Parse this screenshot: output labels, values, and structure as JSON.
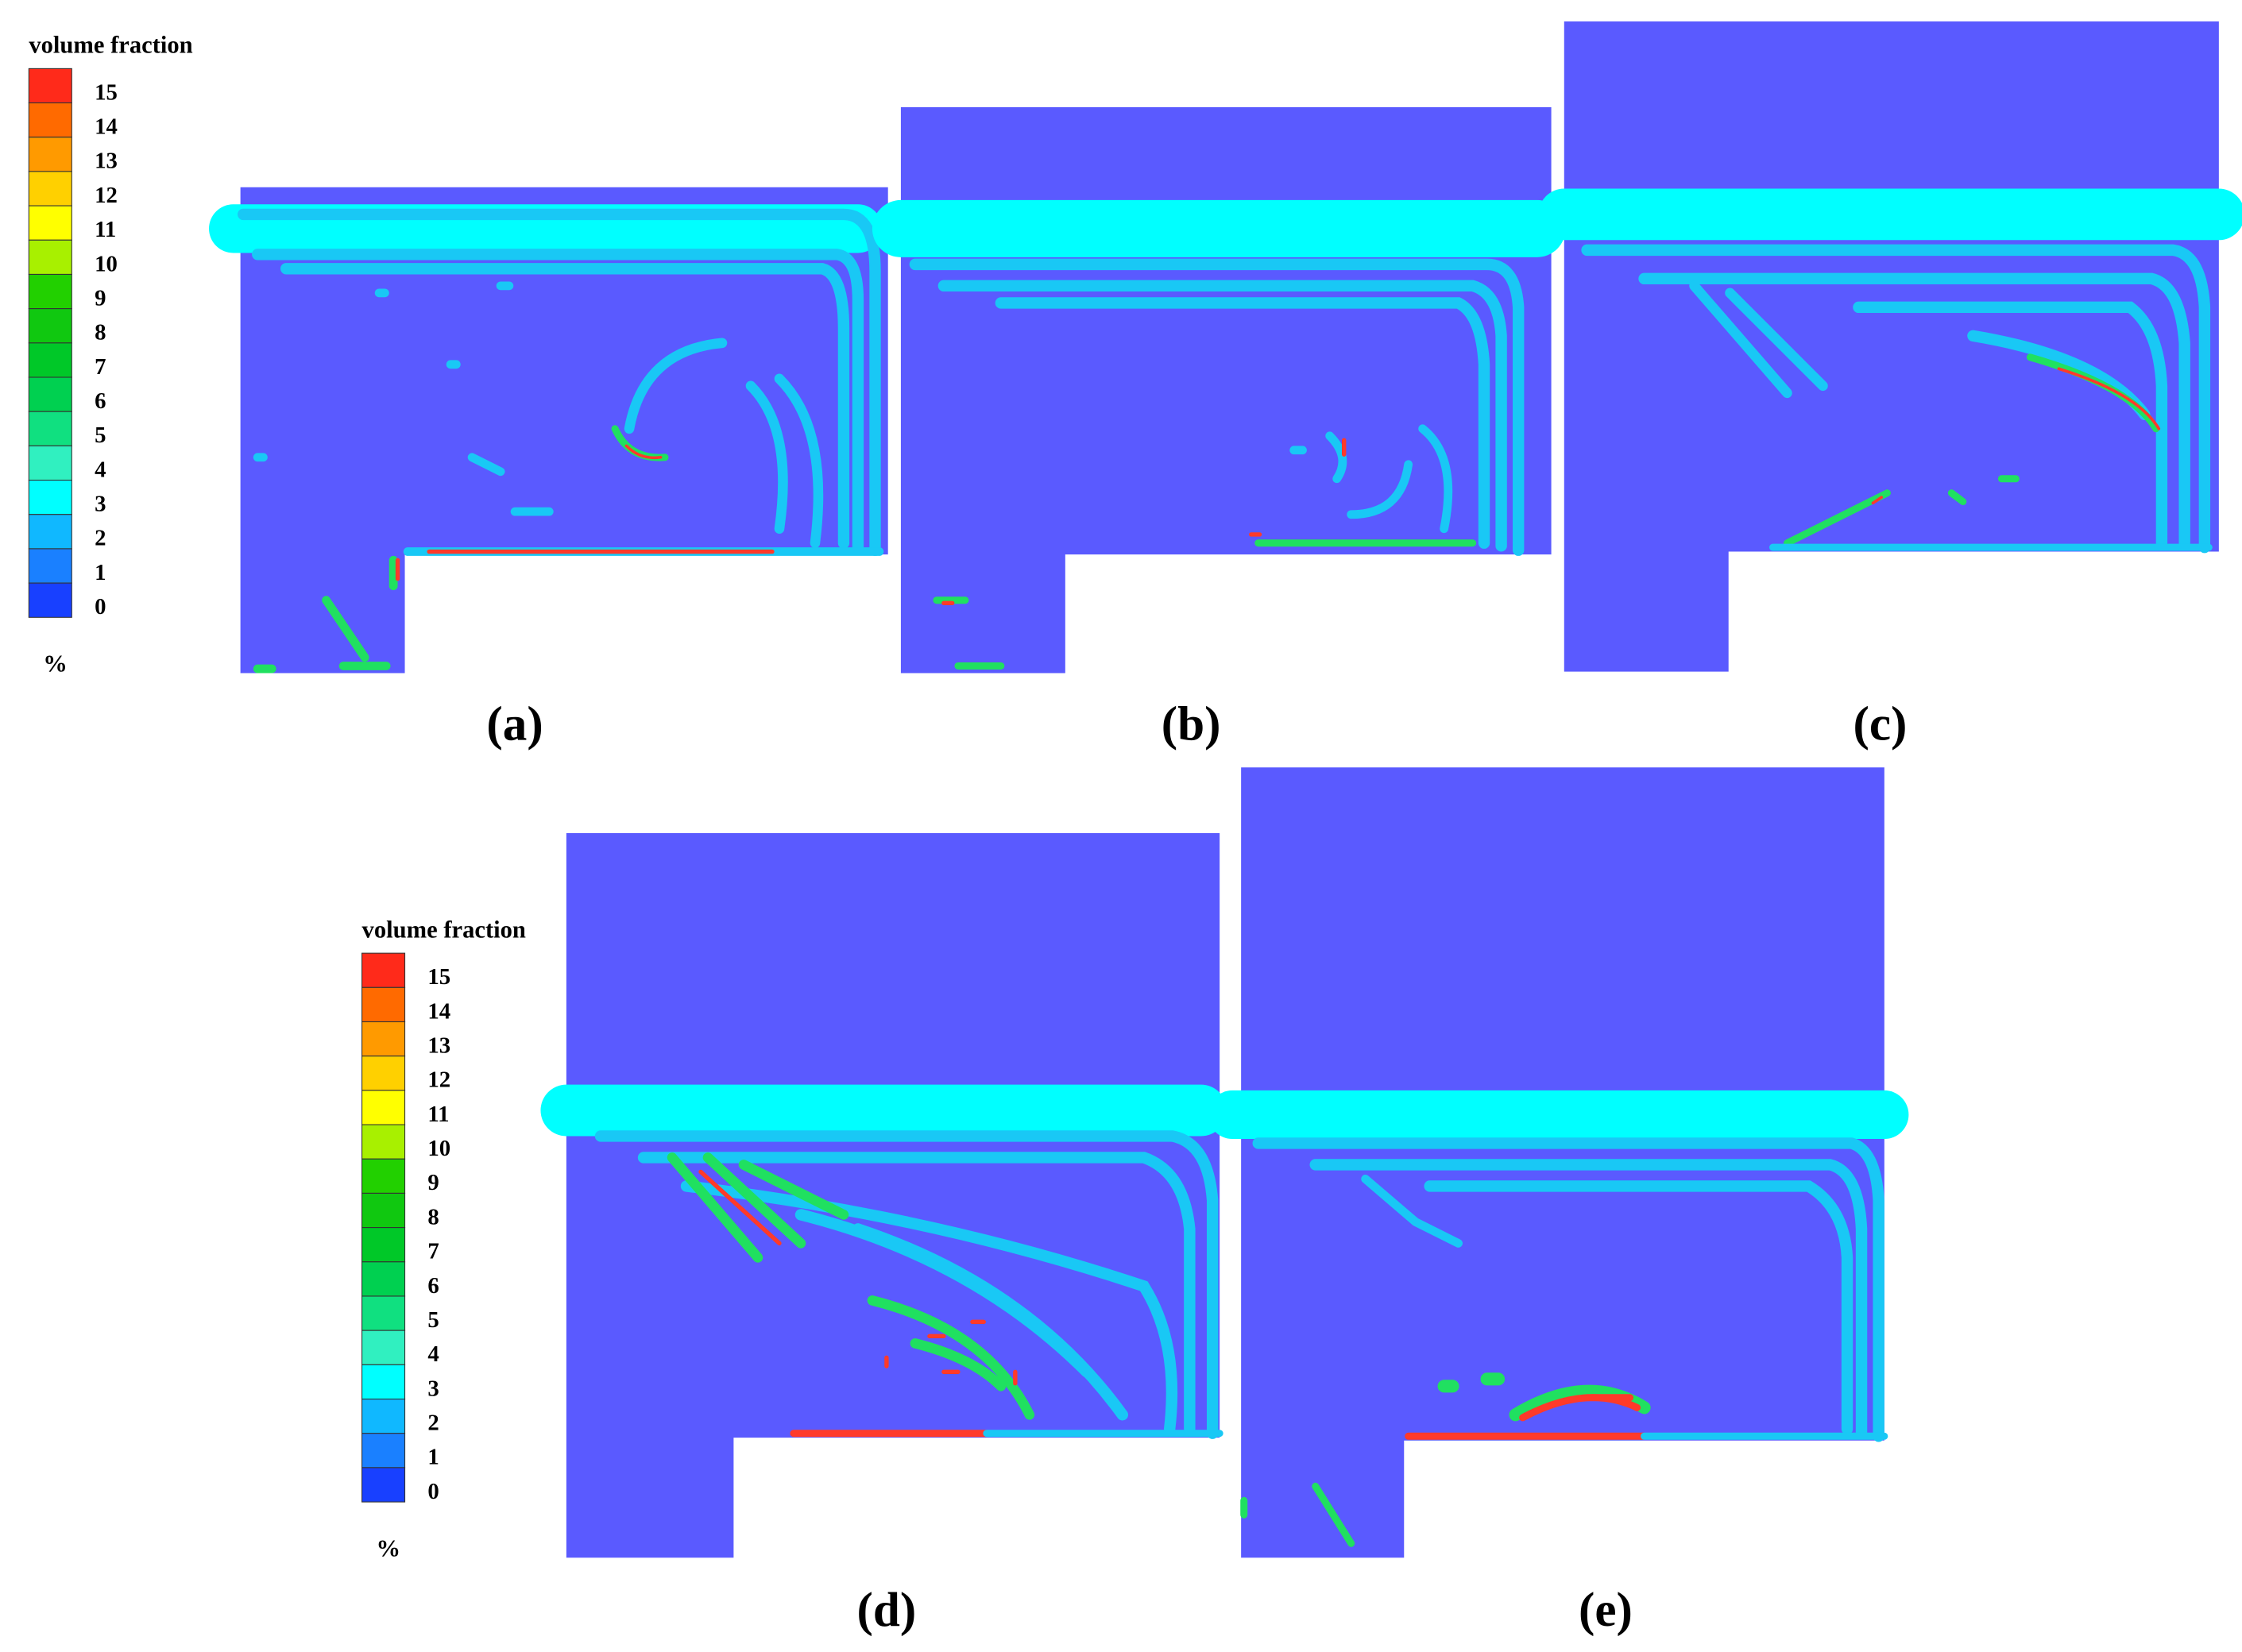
{
  "legends": [
    {
      "title": "volume fraction",
      "unit": "%",
      "levels": [
        {
          "value": 15,
          "color": "#ff2a1a"
        },
        {
          "value": 14,
          "color": "#ff6a00"
        },
        {
          "value": 13,
          "color": "#ff9a00"
        },
        {
          "value": 12,
          "color": "#ffd000"
        },
        {
          "value": 11,
          "color": "#ffff00"
        },
        {
          "value": 10,
          "color": "#a8f000"
        },
        {
          "value": 9,
          "color": "#22d000"
        },
        {
          "value": 8,
          "color": "#10c810"
        },
        {
          "value": 7,
          "color": "#00c828"
        },
        {
          "value": 6,
          "color": "#00d050"
        },
        {
          "value": 5,
          "color": "#10e080"
        },
        {
          "value": 4,
          "color": "#30f0c0"
        },
        {
          "value": 3,
          "color": "#00ffff"
        },
        {
          "value": 2,
          "color": "#10b8ff"
        },
        {
          "value": 1,
          "color": "#1a80ff"
        },
        {
          "value": 0,
          "color": "#1840ff"
        }
      ]
    },
    {
      "title": "volume fraction",
      "unit": "%",
      "levels": [
        {
          "value": 15,
          "color": "#ff2a1a"
        },
        {
          "value": 14,
          "color": "#ff6a00"
        },
        {
          "value": 13,
          "color": "#ff9a00"
        },
        {
          "value": 12,
          "color": "#ffd000"
        },
        {
          "value": 11,
          "color": "#ffff00"
        },
        {
          "value": 10,
          "color": "#a8f000"
        },
        {
          "value": 9,
          "color": "#22d000"
        },
        {
          "value": 8,
          "color": "#10c810"
        },
        {
          "value": 7,
          "color": "#00c828"
        },
        {
          "value": 6,
          "color": "#00d050"
        },
        {
          "value": 5,
          "color": "#10e080"
        },
        {
          "value": 4,
          "color": "#30f0c0"
        },
        {
          "value": 3,
          "color": "#00ffff"
        },
        {
          "value": 2,
          "color": "#10b8ff"
        },
        {
          "value": 1,
          "color": "#1a80ff"
        },
        {
          "value": 0,
          "color": "#1840ff"
        }
      ]
    }
  ],
  "panels": [
    {
      "label": "(a)"
    },
    {
      "label": "(b)"
    },
    {
      "label": "(c)"
    },
    {
      "label": "(d)"
    },
    {
      "label": "(e)"
    }
  ]
}
